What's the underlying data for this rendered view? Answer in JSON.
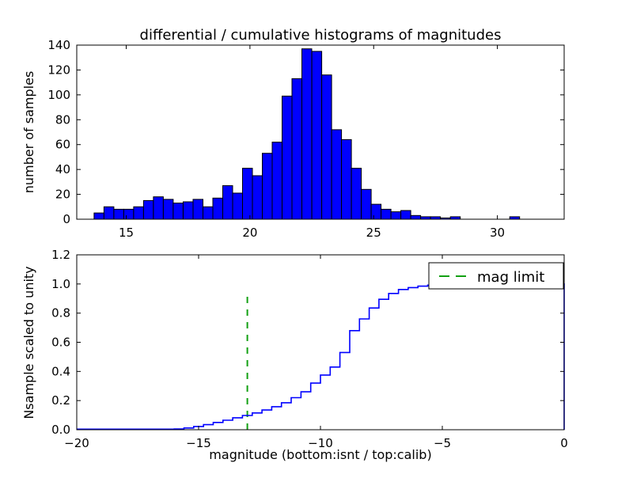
{
  "figure": {
    "title": "differential / cumulative histograms of magnitudes",
    "background": "#ffffff",
    "text_color": "#000000"
  },
  "chart_data": [
    {
      "type": "bar",
      "name": "differential histogram of magnitudes (top)",
      "ylabel": "number of samples",
      "xlim": [
        13.0,
        32.7
      ],
      "ylim": [
        0,
        140
      ],
      "xticks": [
        15,
        20,
        25,
        30
      ],
      "xticklabels": [
        "15",
        "20",
        "25",
        "30"
      ],
      "yticks": [
        0,
        20,
        40,
        60,
        80,
        100,
        120,
        140
      ],
      "yticklabels": [
        "0",
        "20",
        "40",
        "60",
        "80",
        "100",
        "120",
        "140"
      ],
      "grid": false,
      "bin_start": 13.7,
      "bin_width": 0.4,
      "values": [
        5,
        10,
        8,
        8,
        10,
        15,
        18,
        16,
        13,
        14,
        16,
        10,
        17,
        27,
        21,
        41,
        35,
        53,
        62,
        99,
        113,
        137,
        135,
        116,
        72,
        64,
        41,
        24,
        12,
        8,
        6,
        7,
        3,
        2,
        2,
        1,
        2,
        0,
        0,
        0,
        0,
        0,
        2,
        0,
        0,
        0,
        0
      ],
      "bar_fill": "#0000ff",
      "bar_edge": "#000000"
    },
    {
      "type": "line",
      "name": "cumulative histogram scaled to unity (bottom)",
      "ylabel": "Nsample scaled to unity",
      "xlabel": "magnitude (bottom:isnt / top:calib)",
      "xlim": [
        -20,
        0
      ],
      "ylim": [
        0,
        1.2
      ],
      "xticks": [
        -20,
        -15,
        -10,
        -5,
        0
      ],
      "xticklabels": [
        "−20",
        "−15",
        "−10",
        "−5",
        "0"
      ],
      "yticks": [
        0,
        0.2,
        0.4,
        0.6,
        0.8,
        1.0,
        1.2
      ],
      "yticklabels": [
        "0.0",
        "0.2",
        "0.4",
        "0.6",
        "0.8",
        "1.0",
        "1.2"
      ],
      "grid": false,
      "line_color": "#0000ff",
      "flat_zero_from_x": -20,
      "steps": [
        [
          -16.0,
          0.005
        ],
        [
          -15.6,
          0.012
        ],
        [
          -15.2,
          0.022
        ],
        [
          -14.8,
          0.035
        ],
        [
          -14.4,
          0.05
        ],
        [
          -14.0,
          0.065
        ],
        [
          -13.6,
          0.082
        ],
        [
          -13.2,
          0.098
        ],
        [
          -12.8,
          0.115
        ],
        [
          -12.4,
          0.135
        ],
        [
          -12.0,
          0.158
        ],
        [
          -11.6,
          0.185
        ],
        [
          -11.2,
          0.22
        ],
        [
          -10.8,
          0.26
        ],
        [
          -10.4,
          0.32
        ],
        [
          -10.0,
          0.375
        ],
        [
          -9.6,
          0.43
        ],
        [
          -9.2,
          0.53
        ],
        [
          -8.8,
          0.68
        ],
        [
          -8.4,
          0.76
        ],
        [
          -8.0,
          0.835
        ],
        [
          -7.6,
          0.895
        ],
        [
          -7.2,
          0.935
        ],
        [
          -6.8,
          0.962
        ],
        [
          -6.4,
          0.975
        ],
        [
          -6.0,
          0.985
        ],
        [
          -5.6,
          0.992
        ],
        [
          -5.2,
          0.997
        ],
        [
          -4.8,
          1.0
        ]
      ],
      "flat_one_to_x": 0,
      "mag_limit": {
        "x": -13,
        "y_top": 0.95,
        "color": "#12a012",
        "label": "mag limit"
      },
      "legend": {
        "label": "mag limit",
        "position": "upper right"
      }
    }
  ]
}
